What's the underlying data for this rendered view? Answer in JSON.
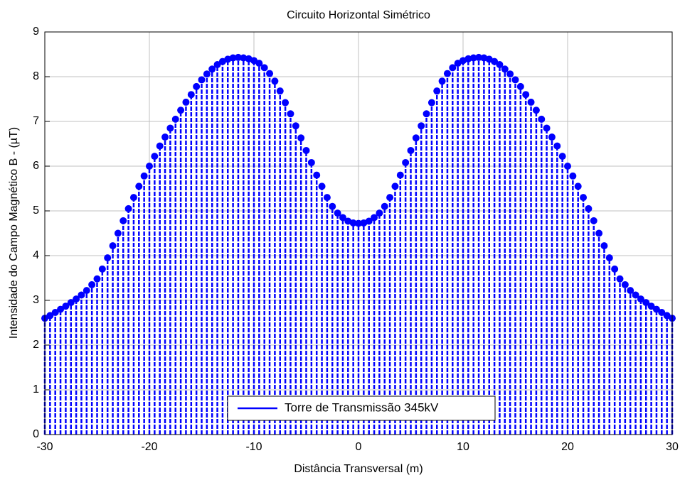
{
  "chart_data": {
    "type": "stem",
    "title": "Circuito Horizontal Simétrico",
    "xlabel": "Distância Transversal (m)",
    "ylabel": "Intensidade do Campo Magnético B - (µT)",
    "x": [
      -30,
      -29.5,
      -29,
      -28.5,
      -28,
      -27.5,
      -27,
      -26.5,
      -26,
      -25.5,
      -25,
      -24.5,
      -24,
      -23.5,
      -23,
      -22.5,
      -22,
      -21.5,
      -21,
      -20.5,
      -20,
      -19.5,
      -19,
      -18.5,
      -18,
      -17.5,
      -17,
      -16.5,
      -16,
      -15.5,
      -15,
      -14.5,
      -14,
      -13.5,
      -13,
      -12.5,
      -12,
      -11.5,
      -11,
      -10.5,
      -10,
      -9.5,
      -9,
      -8.5,
      -8,
      -7.5,
      -7,
      -6.5,
      -6,
      -5.5,
      -5,
      -4.5,
      -4,
      -3.5,
      -3,
      -2.5,
      -2,
      -1.5,
      -1,
      -0.5,
      0,
      0.5,
      1,
      1.5,
      2,
      2.5,
      3,
      3.5,
      4,
      4.5,
      5,
      5.5,
      6,
      6.5,
      7,
      7.5,
      8,
      8.5,
      9,
      9.5,
      10,
      10.5,
      11,
      11.5,
      12,
      12.5,
      13,
      13.5,
      14,
      14.5,
      15,
      15.5,
      16,
      16.5,
      17,
      17.5,
      18,
      18.5,
      19,
      19.5,
      20,
      20.5,
      21,
      21.5,
      22,
      22.5,
      23,
      23.5,
      24,
      24.5,
      25,
      25.5,
      26,
      26.5,
      27,
      27.5,
      28,
      28.5,
      29,
      29.5,
      30
    ],
    "series": [
      {
        "name": "Torre de Transmissão 345kV",
        "color": "#0000ff",
        "values": [
          2.6,
          2.66,
          2.73,
          2.8,
          2.87,
          2.95,
          3.03,
          3.12,
          3.22,
          3.35,
          3.48,
          3.7,
          3.95,
          4.22,
          4.5,
          4.78,
          5.05,
          5.3,
          5.55,
          5.78,
          6.0,
          6.22,
          6.45,
          6.65,
          6.85,
          7.05,
          7.25,
          7.43,
          7.6,
          7.78,
          7.93,
          8.06,
          8.17,
          8.27,
          8.34,
          8.39,
          8.42,
          8.43,
          8.42,
          8.4,
          8.36,
          8.3,
          8.2,
          8.07,
          7.9,
          7.68,
          7.42,
          7.17,
          6.9,
          6.63,
          6.35,
          6.08,
          5.8,
          5.55,
          5.3,
          5.1,
          4.95,
          4.85,
          4.77,
          4.73,
          4.72,
          4.73,
          4.77,
          4.85,
          4.95,
          5.1,
          5.3,
          5.55,
          5.8,
          6.08,
          6.35,
          6.63,
          6.9,
          7.17,
          7.42,
          7.68,
          7.9,
          8.07,
          8.2,
          8.3,
          8.36,
          8.4,
          8.42,
          8.43,
          8.42,
          8.39,
          8.34,
          8.27,
          8.17,
          8.06,
          7.93,
          7.78,
          7.6,
          7.43,
          7.25,
          7.05,
          6.85,
          6.65,
          6.45,
          6.22,
          6.0,
          5.78,
          5.55,
          5.3,
          5.05,
          4.78,
          4.5,
          4.22,
          3.95,
          3.7,
          3.48,
          3.35,
          3.22,
          3.12,
          3.03,
          2.95,
          2.87,
          2.8,
          2.73,
          2.66,
          2.6
        ]
      }
    ],
    "xlim": [
      -30,
      30
    ],
    "xticks": [
      -30,
      -20,
      -10,
      0,
      10,
      20,
      30
    ],
    "ylim": [
      0,
      9
    ],
    "yticks": [
      0,
      1,
      2,
      3,
      4,
      5,
      6,
      7,
      8,
      9
    ],
    "grid": true,
    "legend": "south"
  }
}
